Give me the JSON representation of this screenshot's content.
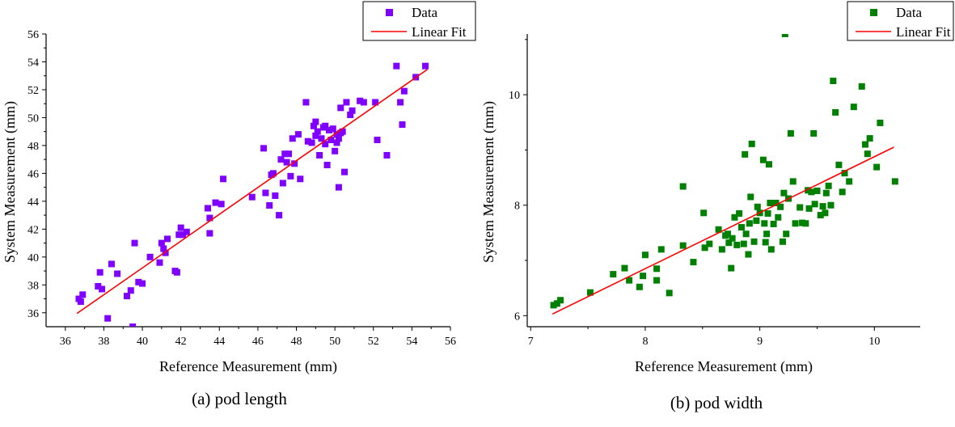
{
  "chart_data": [
    {
      "type": "scatter",
      "caption": "(a) pod length",
      "xlabel": "Reference Measurement (mm)",
      "ylabel": "System Measurement (mm)",
      "xlim": [
        35,
        56
      ],
      "ylim": [
        35,
        56
      ],
      "xticks": [
        36,
        38,
        40,
        42,
        44,
        46,
        48,
        50,
        52,
        54,
        56
      ],
      "yticks": [
        36,
        38,
        40,
        42,
        44,
        46,
        48,
        50,
        52,
        54,
        56
      ],
      "minor_ticks": true,
      "grid": false,
      "legend_position": "top-right",
      "series": [
        {
          "name": "Data",
          "kind": "marker",
          "marker": "square",
          "color": "#8000ff",
          "x": [
            36.7,
            36.8,
            36.9,
            37.7,
            37.8,
            37.9,
            38.2,
            38.4,
            38.7,
            39.2,
            39.4,
            39.5,
            39.6,
            39.8,
            40,
            40.4,
            40.9,
            41,
            41.1,
            41.2,
            41.3,
            41.7,
            41.8,
            41.9,
            42,
            42.1,
            42.3,
            43.4,
            43.5,
            43.5,
            43.8,
            44.1,
            44.2,
            45.7,
            46.3,
            46.4,
            46.6,
            46.7,
            46.8,
            46.9,
            47.1,
            47.2,
            47.3,
            47.4,
            47.5,
            47.6,
            47.7,
            47.8,
            47.9,
            48.1,
            48.2,
            48.5,
            48.6,
            48.8,
            48.9,
            49,
            49,
            49.1,
            49.2,
            49.3,
            49.4,
            49.5,
            49.5,
            49.6,
            49.7,
            49.8,
            49.9,
            50,
            50.1,
            50.1,
            50.2,
            50.2,
            50.3,
            50.3,
            50.4,
            50.5,
            50.6,
            50.8,
            50.9,
            51.3,
            51.5,
            52.1,
            52.2,
            52.7,
            53.2,
            53.4,
            53.5,
            53.6,
            54.2,
            54.7
          ],
          "y": [
            37,
            36.8,
            37.3,
            37.9,
            38.9,
            37.7,
            35.6,
            39.5,
            38.8,
            37.2,
            37.6,
            35,
            41,
            38.2,
            38.1,
            40,
            39.6,
            41,
            40.6,
            40.3,
            41.3,
            39,
            38.9,
            41.6,
            42.1,
            41.6,
            41.8,
            43.5,
            42.8,
            41.7,
            43.9,
            43.8,
            45.6,
            44.3,
            47.8,
            44.6,
            43.7,
            45.9,
            46,
            44.4,
            43,
            47,
            45.3,
            47.4,
            46.8,
            47.4,
            45.8,
            48.5,
            46.7,
            48.8,
            45.6,
            51.1,
            48.3,
            48.2,
            49.4,
            48.7,
            49.7,
            49,
            47.3,
            48.5,
            49.3,
            49.4,
            48.1,
            46.6,
            49.1,
            48.4,
            49.2,
            47.6,
            48.8,
            48.2,
            45,
            48.5,
            50.7,
            48.9,
            49,
            46.1,
            51.1,
            50.2,
            50.5,
            51.2,
            51.1,
            51.1,
            48.4,
            47.3,
            53.7,
            51.1,
            49.5,
            51.9,
            52.9,
            53.7
          ]
        },
        {
          "name": "Linear Fit",
          "kind": "line",
          "color": "#ff0000",
          "x": [
            36.6,
            54.8
          ],
          "y": [
            35.95,
            53.45
          ]
        }
      ]
    },
    {
      "type": "scatter",
      "caption": "(b) pod width",
      "xlabel": "Reference Measurement (mm)",
      "ylabel": "System Measurement (mm)",
      "xlim": [
        6.97,
        10.4
      ],
      "ylim": [
        5.8,
        11.1
      ],
      "xticks": [
        7,
        8,
        9,
        10
      ],
      "yticks": [
        6,
        8,
        10
      ],
      "minor_ticks": true,
      "grid": false,
      "legend_position": "top-right",
      "series": [
        {
          "name": "Data",
          "kind": "marker",
          "marker": "square",
          "color": "#008000",
          "x": [
            7.2,
            7.23,
            7.26,
            7.52,
            7.72,
            7.82,
            7.86,
            7.95,
            7.98,
            8.0,
            8.1,
            8.1,
            8.14,
            8.21,
            8.33,
            8.33,
            8.42,
            8.51,
            8.52,
            8.56,
            8.64,
            8.67,
            8.7,
            8.72,
            8.73,
            8.75,
            8.76,
            8.78,
            8.8,
            8.82,
            8.84,
            8.86,
            8.87,
            8.88,
            8.9,
            8.91,
            8.92,
            8.93,
            8.95,
            8.97,
            8.98,
            9.0,
            9.03,
            9.04,
            9.05,
            9.06,
            9.07,
            9.08,
            9.09,
            9.1,
            9.12,
            9.14,
            9.16,
            9.18,
            9.2,
            9.21,
            9.22,
            9.23,
            9.25,
            9.27,
            9.29,
            9.31,
            9.35,
            9.37,
            9.4,
            9.42,
            9.43,
            9.45,
            9.47,
            9.48,
            9.5,
            9.53,
            9.55,
            9.57,
            9.58,
            9.6,
            9.62,
            9.64,
            9.66,
            9.69,
            9.72,
            9.74,
            9.78,
            9.82,
            9.89,
            9.92,
            9.94,
            9.96,
            10.02,
            10.05,
            10.18
          ],
          "y": [
            6.19,
            6.22,
            6.28,
            6.42,
            6.75,
            6.86,
            6.64,
            6.52,
            6.72,
            7.1,
            6.85,
            6.64,
            7.2,
            6.41,
            7.27,
            8.34,
            6.97,
            7.86,
            7.23,
            7.3,
            7.56,
            7.2,
            7.45,
            7.48,
            7.32,
            6.86,
            7.4,
            7.78,
            7.28,
            7.85,
            7.6,
            7.3,
            8.92,
            7.48,
            7.11,
            7.67,
            8.15,
            9.11,
            7.34,
            7.72,
            7.97,
            7.86,
            8.82,
            7.67,
            7.33,
            7.48,
            7.85,
            8.74,
            8.04,
            7.2,
            7.66,
            8.04,
            7.78,
            7.97,
            7.34,
            8.22,
            11.1,
            7.48,
            8.12,
            9.3,
            8.43,
            7.67,
            7.96,
            7.68,
            7.67,
            8.27,
            7.94,
            8.24,
            9.3,
            8.02,
            8.26,
            7.82,
            7.98,
            7.86,
            8.22,
            8.35,
            8.0,
            10.25,
            9.68,
            8.73,
            8.24,
            8.58,
            8.43,
            9.78,
            10.15,
            9.1,
            8.93,
            9.21,
            8.69,
            9.49,
            8.43
          ]
        },
        {
          "name": "Linear Fit",
          "kind": "line",
          "color": "#ff0000",
          "x": [
            7.19,
            10.17
          ],
          "y": [
            6.03,
            9.05
          ]
        }
      ]
    }
  ]
}
